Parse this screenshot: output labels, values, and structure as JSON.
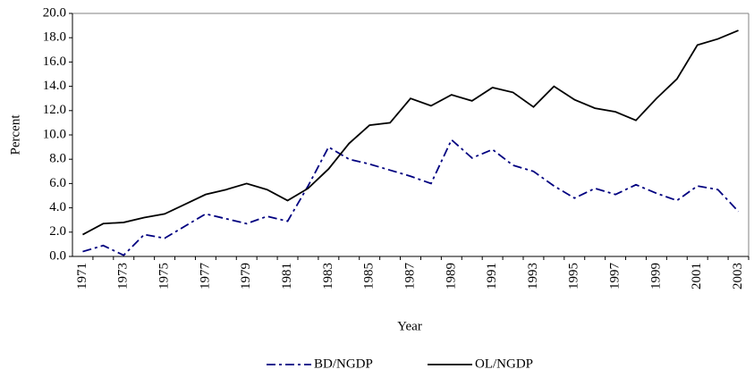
{
  "chart_data": {
    "type": "line",
    "x_label": "Year",
    "y_label": "Percent",
    "categories": [
      "1971",
      null,
      "1973",
      null,
      "1975",
      null,
      "1977",
      null,
      "1979",
      null,
      "1981",
      null,
      "1983",
      null,
      "1985",
      null,
      "1987",
      null,
      "1989",
      null,
      "1991",
      null,
      "1993",
      null,
      "1995",
      null,
      "1997",
      null,
      "1999",
      null,
      "2001",
      null,
      "2003"
    ],
    "series": [
      {
        "name": "BD/NGDP",
        "color": "#000080",
        "style": "dash-dot",
        "values": [
          0.4,
          0.9,
          0.1,
          1.8,
          1.5,
          2.5,
          3.5,
          3.1,
          2.7,
          3.3,
          2.9,
          5.8,
          9.0,
          8.0,
          7.6,
          7.1,
          6.6,
          6.0,
          9.6,
          8.1,
          8.8,
          7.5,
          7.0,
          5.8,
          4.8,
          5.6,
          5.1,
          5.9,
          5.2,
          4.6,
          5.8,
          5.5,
          3.7
        ]
      },
      {
        "name": "OL/NGDP",
        "color": "#000000",
        "style": "solid",
        "values": [
          1.8,
          2.7,
          2.8,
          3.2,
          3.5,
          4.3,
          5.1,
          5.5,
          6.0,
          5.5,
          4.6,
          5.6,
          7.2,
          9.3,
          10.8,
          11.0,
          13.0,
          12.4,
          13.3,
          12.8,
          13.9,
          13.5,
          12.3,
          14.0,
          12.9,
          12.2,
          11.9,
          11.2,
          13.0,
          14.6,
          17.4,
          17.9,
          18.6
        ]
      }
    ],
    "ylim": [
      0,
      20
    ],
    "yticks": [
      {
        "value": 0,
        "label": "0.0"
      },
      {
        "value": 2,
        "label": "2.0"
      },
      {
        "value": 4,
        "label": "4.0"
      },
      {
        "value": 6,
        "label": "6.0"
      },
      {
        "value": 8,
        "label": "8.0"
      },
      {
        "value": 10,
        "label": "10.0"
      },
      {
        "value": 12,
        "label": "12.0"
      },
      {
        "value": 14,
        "label": "14.0"
      },
      {
        "value": 16,
        "label": "16.0"
      },
      {
        "value": 18,
        "label": "18.0"
      },
      {
        "value": 20,
        "label": "20.0"
      }
    ],
    "grid": false,
    "legend": "bottom"
  }
}
